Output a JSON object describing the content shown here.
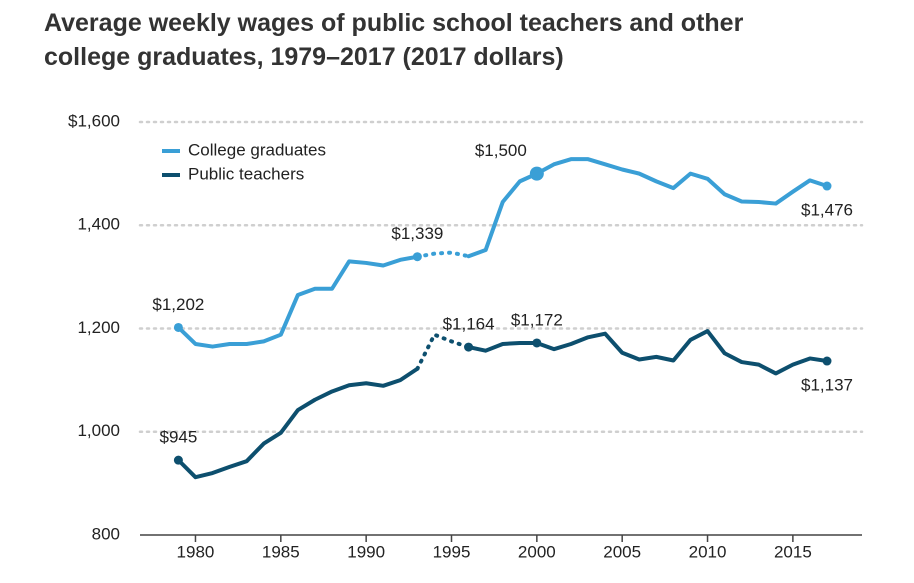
{
  "chart_data": {
    "type": "line",
    "title": "Average weekly wages of public school teachers and other college graduates, 1979–2017 (2017 dollars)",
    "x": [
      1979,
      1980,
      1981,
      1982,
      1983,
      1984,
      1985,
      1986,
      1987,
      1988,
      1989,
      1990,
      1991,
      1992,
      1993,
      1994,
      1995,
      1996,
      1997,
      1998,
      1999,
      2000,
      2001,
      2002,
      2003,
      2004,
      2005,
      2006,
      2007,
      2008,
      2009,
      2010,
      2011,
      2012,
      2013,
      2014,
      2015,
      2016,
      2017
    ],
    "series": [
      {
        "name": "College graduates",
        "color": "#3a9fd6",
        "values": [
          1202,
          1170,
          1165,
          1170,
          1170,
          1175,
          1188,
          1265,
          1277,
          1277,
          1330,
          1327,
          1322,
          1333,
          1339,
          1345,
          1347,
          1340,
          1352,
          1445,
          1485,
          1500,
          1518,
          1528,
          1528,
          1518,
          1508,
          1500,
          1485,
          1472,
          1500,
          1490,
          1460,
          1446,
          1445,
          1442,
          1465,
          1487,
          1476
        ],
        "value_labels": [
          "$1,202",
          null,
          null,
          null,
          null,
          null,
          null,
          null,
          null,
          null,
          null,
          null,
          null,
          null,
          "$1,339",
          null,
          null,
          null,
          null,
          null,
          null,
          "$1,500",
          null,
          null,
          null,
          null,
          null,
          null,
          null,
          null,
          null,
          null,
          null,
          null,
          null,
          null,
          null,
          null,
          "$1,476"
        ]
      },
      {
        "name": "Public teachers",
        "color": "#0d4f6e",
        "values": [
          945,
          912,
          920,
          932,
          943,
          977,
          998,
          1042,
          1062,
          1078,
          1090,
          1094,
          1089,
          1100,
          1122,
          1188,
          1175,
          1164,
          1157,
          1170,
          1172,
          1172,
          1160,
          1170,
          1183,
          1190,
          1153,
          1140,
          1145,
          1138,
          1178,
          1195,
          1152,
          1135,
          1130,
          1113,
          1130,
          1142,
          1137
        ],
        "value_labels": [
          "$945",
          null,
          null,
          null,
          null,
          null,
          null,
          null,
          null,
          null,
          null,
          null,
          null,
          null,
          null,
          null,
          null,
          "$1,164",
          null,
          null,
          null,
          "$1,172",
          null,
          null,
          null,
          null,
          null,
          null,
          null,
          null,
          null,
          null,
          null,
          null,
          null,
          null,
          null,
          null,
          "$1,137"
        ]
      }
    ],
    "dotted_x": [
      1993,
      1996
    ],
    "xlim": [
      1976.75,
      2019.05
    ],
    "xticks": [
      1980,
      1985,
      1990,
      1995,
      2000,
      2005,
      2010,
      2015
    ],
    "ylim": [
      800,
      1600
    ],
    "yticks": [
      800,
      {
        "value": 1000,
        "label": "1,000"
      },
      {
        "value": 1200,
        "label": "1,200"
      },
      {
        "value": 1400,
        "label": "1,400"
      },
      {
        "value": 1600,
        "label": "$1,600"
      }
    ],
    "grid": true
  }
}
